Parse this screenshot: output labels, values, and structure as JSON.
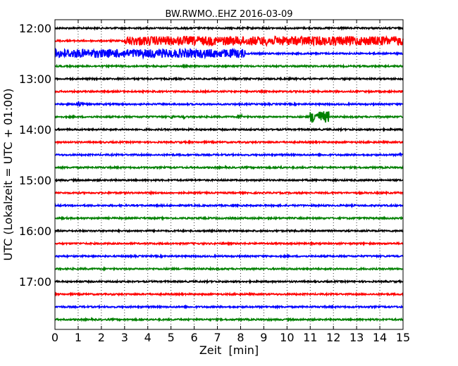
{
  "chart_data": {
    "type": "line",
    "title": "BW.RWMO..EHZ 2016-03-09",
    "xlabel": "Zeit  [min]",
    "ylabel": "UTC (Lokalzeit = UTC + 01:00)",
    "xlim": [
      0,
      15
    ],
    "x_ticks": [
      0,
      1,
      2,
      3,
      4,
      5,
      6,
      7,
      8,
      9,
      10,
      11,
      12,
      13,
      14,
      15
    ],
    "y_tick_labels": [
      "12:00",
      "13:00",
      "14:00",
      "15:00",
      "16:00",
      "17:00"
    ],
    "grid": "vertical dotted",
    "colors": {
      "black": "#000000",
      "red": "#ff0000",
      "blue": "#0000ff",
      "green": "#008000"
    },
    "traces": [
      {
        "start": "12:00",
        "color": "black",
        "events": []
      },
      {
        "start": "12:15",
        "color": "red",
        "events": [
          {
            "from": 3.0,
            "to": 15.0,
            "amp": 0.8
          }
        ]
      },
      {
        "start": "12:30",
        "color": "blue",
        "events": [
          {
            "from": 0.0,
            "to": 8.2,
            "amp": 0.75
          }
        ]
      },
      {
        "start": "12:45",
        "color": "green",
        "events": []
      },
      {
        "start": "13:00",
        "color": "black",
        "events": []
      },
      {
        "start": "13:15",
        "color": "red",
        "events": []
      },
      {
        "start": "13:30",
        "color": "blue",
        "events": [
          {
            "from": 0.9,
            "to": 1.2,
            "amp": 0.45
          }
        ]
      },
      {
        "start": "13:45",
        "color": "green",
        "events": [
          {
            "from": 5.0,
            "to": 5.1,
            "amp": 0.35
          },
          {
            "from": 5.5,
            "to": 5.6,
            "amp": 0.3
          },
          {
            "from": 7.9,
            "to": 8.05,
            "amp": 0.45
          },
          {
            "from": 11.0,
            "to": 11.8,
            "amp": 1.0
          }
        ]
      },
      {
        "start": "14:00",
        "color": "black",
        "events": []
      },
      {
        "start": "14:15",
        "color": "red",
        "events": []
      },
      {
        "start": "14:30",
        "color": "blue",
        "events": [
          {
            "from": 14.8,
            "to": 15.0,
            "amp": 0.25
          }
        ]
      },
      {
        "start": "14:45",
        "color": "green",
        "events": [
          {
            "from": 9.6,
            "to": 9.8,
            "amp": 0.2
          }
        ]
      },
      {
        "start": "15:00",
        "color": "black",
        "events": []
      },
      {
        "start": "15:15",
        "color": "red",
        "events": []
      },
      {
        "start": "15:30",
        "color": "blue",
        "events": []
      },
      {
        "start": "15:45",
        "color": "green",
        "events": []
      },
      {
        "start": "16:00",
        "color": "black",
        "events": []
      },
      {
        "start": "16:15",
        "color": "red",
        "events": []
      },
      {
        "start": "16:30",
        "color": "blue",
        "events": []
      },
      {
        "start": "16:45",
        "color": "green",
        "events": []
      },
      {
        "start": "17:00",
        "color": "black",
        "events": []
      },
      {
        "start": "17:15",
        "color": "red",
        "events": []
      },
      {
        "start": "17:30",
        "color": "blue",
        "events": []
      },
      {
        "start": "17:45",
        "color": "green",
        "events": []
      }
    ]
  }
}
